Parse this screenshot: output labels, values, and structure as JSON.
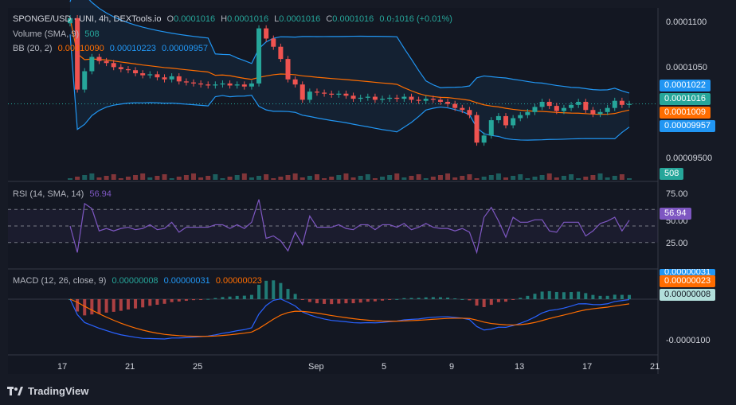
{
  "header": {
    "symbol_line": "SPONGE/USD · UNI, 4h, DEXTools.io",
    "o_label": "O",
    "o_value": "0.0001016",
    "h_label": "H",
    "h_value": "0.0001016",
    "l_label": "L",
    "l_value": "0.0001016",
    "c_label": "C",
    "c_value": "0.0001016",
    "change": "0.0₇1016 (+0.01%)"
  },
  "volume_legend": {
    "label": "Volume (SMA, 9)",
    "value": "508"
  },
  "bb_legend": {
    "label": "BB (20, 2)",
    "basis": "0.00010090",
    "upper": "0.00010223",
    "lower": "0.00009957"
  },
  "rsi_legend": {
    "label": "RSI (14, SMA, 14)",
    "value": "56.94"
  },
  "macd_legend": {
    "label": "MACD (12, 26, close, 9)",
    "hist": "0.00000008",
    "macd": "0.00000031",
    "signal": "0.00000023"
  },
  "price_axis": {
    "ticks": [
      "0.0001100",
      "0.0001050",
      "0.00009500"
    ]
  },
  "price_tags": {
    "upper": "0.0001022",
    "last": "0.0001016",
    "basis": "0.0001009",
    "lower": "0.00009957",
    "volume": "508"
  },
  "rsi_axis": {
    "ticks": [
      "75.00",
      "50.00",
      "25.00"
    ],
    "tag": "56.94"
  },
  "macd_axis": {
    "ticks": [
      "-0.0000100"
    ],
    "tag_top": "0.00000031",
    "tag_signal": "0.00000023",
    "tag_hist": "0.00000008"
  },
  "time_axis": [
    "17",
    "21",
    "25",
    "Sep",
    "5",
    "9",
    "13",
    "17",
    "21"
  ],
  "brand": "TradingView",
  "colors": {
    "up": "#26a69a",
    "down": "#ef5350",
    "bb": "#2962ff",
    "bb_mid": "#ff6d00",
    "rsi": "#7e57c2",
    "macd": "#2962ff",
    "signal": "#ff6d00"
  },
  "chart_data": {
    "type": "candlestick",
    "interval": "4h",
    "y_range": [
      9.4e-05,
      0.000111
    ],
    "x_labels": [
      "17",
      "21",
      "25",
      "Sep",
      "5",
      "9",
      "13",
      "17",
      "21"
    ],
    "closes": [
      0.00011,
      0.000103,
      0.0001048,
      0.0001062,
      0.0001058,
      0.0001056,
      0.0001052,
      0.000105,
      0.0001049,
      0.0001046,
      0.0001044,
      0.0001045,
      0.0001042,
      0.000104,
      0.0001043,
      0.0001038,
      0.0001037,
      0.0001036,
      0.0001035,
      0.0001034,
      0.0001035,
      0.0001036,
      0.0001034,
      0.0001035,
      0.0001033,
      0.0001036,
      0.000109,
      0.000108,
      0.0001072,
      0.000106,
      0.000104,
      0.0001035,
      0.000102,
      0.0001028,
      0.0001027,
      0.0001026,
      0.0001025,
      0.0001026,
      0.0001024,
      0.0001021,
      0.0001022,
      0.0001023,
      0.000102,
      0.0001021,
      0.0001022,
      0.0001021,
      0.0001023,
      0.000102,
      0.0001019,
      0.0001021,
      0.000102,
      0.0001018,
      0.0001016,
      0.0001012,
      0.000101,
      0.0001005,
      9.78e-05,
      9.85e-05,
      0.0001,
      0.0001004,
      9.95e-05,
      0.0001002,
      0.0001005,
      0.0001008,
      0.0001013,
      0.0001018,
      0.0001014,
      0.0001009,
      0.0001012,
      0.0001015,
      0.0001018,
      0.000101,
      0.0001006,
      0.0001008,
      0.0001012,
      0.0001019,
      0.0001015,
      0.0001016
    ],
    "rsi_value": 56.94,
    "rsi_levels": [
      70,
      50,
      30
    ],
    "macd": {
      "hist": 8e-08,
      "macd": 3.1e-07,
      "signal": 2.3e-07
    },
    "last_volume": 508
  }
}
